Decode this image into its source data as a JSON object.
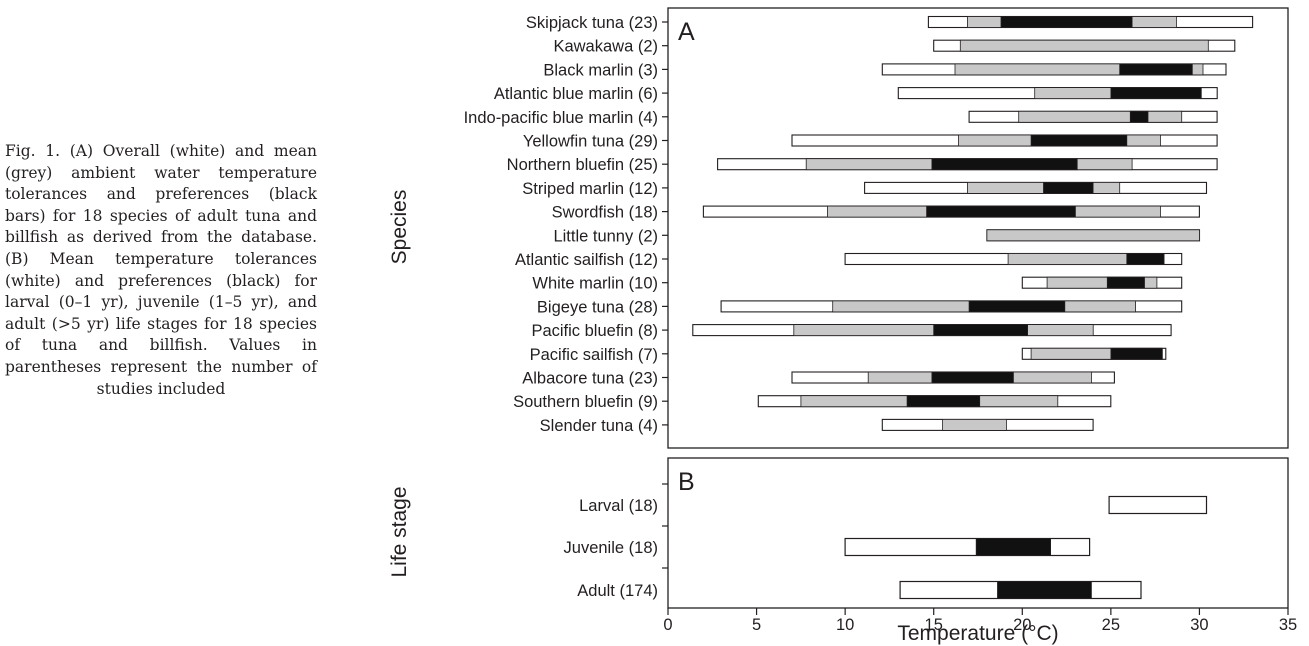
{
  "caption": "Fig. 1. (A) Overall (white) and mean (grey) ambient water temperature tolerances and preferences (black bars) for 18 species of adult tuna and billfish as derived from the database. (B) Mean temperature tolerances (white) and preferences (black) for larval (0–1 yr), juvenile (1–5 yr), and adult (>5 yr) life stages for 18 species of tuna and billfish. Values in parentheses represent the number of studies included",
  "colors": {
    "overall": "#ffffff",
    "mean": "#c8c8c8",
    "preference": "#111111",
    "stroke": "#231f20"
  },
  "chart_data": [
    {
      "panel": "A",
      "type": "bar",
      "orientation": "horizontal-range",
      "ylabel": "Species",
      "xlabel": "",
      "xlim": [
        0,
        35
      ],
      "bars": [
        {
          "label": "Skipjack tuna (23)",
          "overall": [
            14.7,
            33.0
          ],
          "mean": [
            16.9,
            28.7
          ],
          "preference": [
            18.8,
            26.2
          ]
        },
        {
          "label": "Kawakawa (2)",
          "overall": [
            15.0,
            32.0
          ],
          "mean": [
            16.5,
            30.5
          ],
          "preference": null
        },
        {
          "label": "Black marlin (3)",
          "overall": [
            12.1,
            31.5
          ],
          "mean": [
            16.2,
            30.2
          ],
          "preference": [
            25.5,
            29.6
          ]
        },
        {
          "label": "Atlantic blue marlin (6)",
          "overall": [
            13.0,
            31.0
          ],
          "mean": [
            20.7,
            30.1
          ],
          "preference": [
            25.0,
            30.1
          ]
        },
        {
          "label": "Indo-pacific blue marlin (4)",
          "overall": [
            17.0,
            31.0
          ],
          "mean": [
            19.8,
            29.0
          ],
          "preference": [
            26.1,
            27.1
          ]
        },
        {
          "label": "Yellowfin tuna (29)",
          "overall": [
            7.0,
            31.0
          ],
          "mean": [
            16.4,
            27.8
          ],
          "preference": [
            20.5,
            25.9
          ]
        },
        {
          "label": "Northern bluefin (25)",
          "overall": [
            2.8,
            31.0
          ],
          "mean": [
            7.8,
            26.2
          ],
          "preference": [
            14.9,
            23.1
          ]
        },
        {
          "label": "Striped marlin (12)",
          "overall": [
            11.1,
            30.4
          ],
          "mean": [
            16.9,
            25.5
          ],
          "preference": [
            21.2,
            24.0
          ]
        },
        {
          "label": "Swordfish (18)",
          "overall": [
            2.0,
            30.0
          ],
          "mean": [
            9.0,
            27.8
          ],
          "preference": [
            14.6,
            23.0
          ]
        },
        {
          "label": "Little tunny (2)",
          "overall": [
            18.0,
            30.0
          ],
          "mean": [
            18.0,
            30.0
          ],
          "preference": null
        },
        {
          "label": "Atlantic sailfish (12)",
          "overall": [
            10.0,
            29.0
          ],
          "mean": [
            19.2,
            28.0
          ],
          "preference": [
            25.9,
            28.0
          ]
        },
        {
          "label": "White marlin (10)",
          "overall": [
            20.0,
            29.0
          ],
          "mean": [
            21.4,
            27.6
          ],
          "preference": [
            24.8,
            26.9
          ]
        },
        {
          "label": "Bigeye tuna (28)",
          "overall": [
            3.0,
            29.0
          ],
          "mean": [
            9.3,
            26.4
          ],
          "preference": [
            17.0,
            22.4
          ]
        },
        {
          "label": "Pacific bluefin (8)",
          "overall": [
            1.4,
            28.4
          ],
          "mean": [
            7.1,
            24.0
          ],
          "preference": [
            15.0,
            20.3
          ]
        },
        {
          "label": "Pacific sailfish (7)",
          "overall": [
            20.0,
            28.1
          ],
          "mean": [
            20.5,
            27.9
          ],
          "preference": [
            25.0,
            27.9
          ]
        },
        {
          "label": "Albacore tuna (23)",
          "overall": [
            7.0,
            25.2
          ],
          "mean": [
            11.3,
            23.9
          ],
          "preference": [
            14.9,
            19.5
          ]
        },
        {
          "label": "Southern bluefin (9)",
          "overall": [
            5.1,
            25.0
          ],
          "mean": [
            7.5,
            22.0
          ],
          "preference": [
            13.5,
            17.6
          ]
        },
        {
          "label": "Slender tuna (4)",
          "overall": [
            12.1,
            24.0
          ],
          "mean": [
            15.5,
            19.1
          ],
          "preference": null
        }
      ]
    },
    {
      "panel": "B",
      "type": "bar",
      "orientation": "horizontal-range",
      "ylabel": "Life stage",
      "xlabel": "Temperature (°C)",
      "xlim": [
        0,
        35
      ],
      "xticks": [
        "0",
        "5",
        "10",
        "15",
        "20",
        "25",
        "30",
        "35"
      ],
      "bars": [
        {
          "label": "Larval (18)",
          "tolerance": [
            24.9,
            30.4
          ],
          "preference": null
        },
        {
          "label": "Juvenile (18)",
          "tolerance": [
            10.0,
            23.8
          ],
          "preference": [
            17.4,
            21.6
          ]
        },
        {
          "label": "Adult (174)",
          "tolerance": [
            13.1,
            26.7
          ],
          "preference": [
            18.6,
            23.9
          ]
        }
      ]
    }
  ]
}
